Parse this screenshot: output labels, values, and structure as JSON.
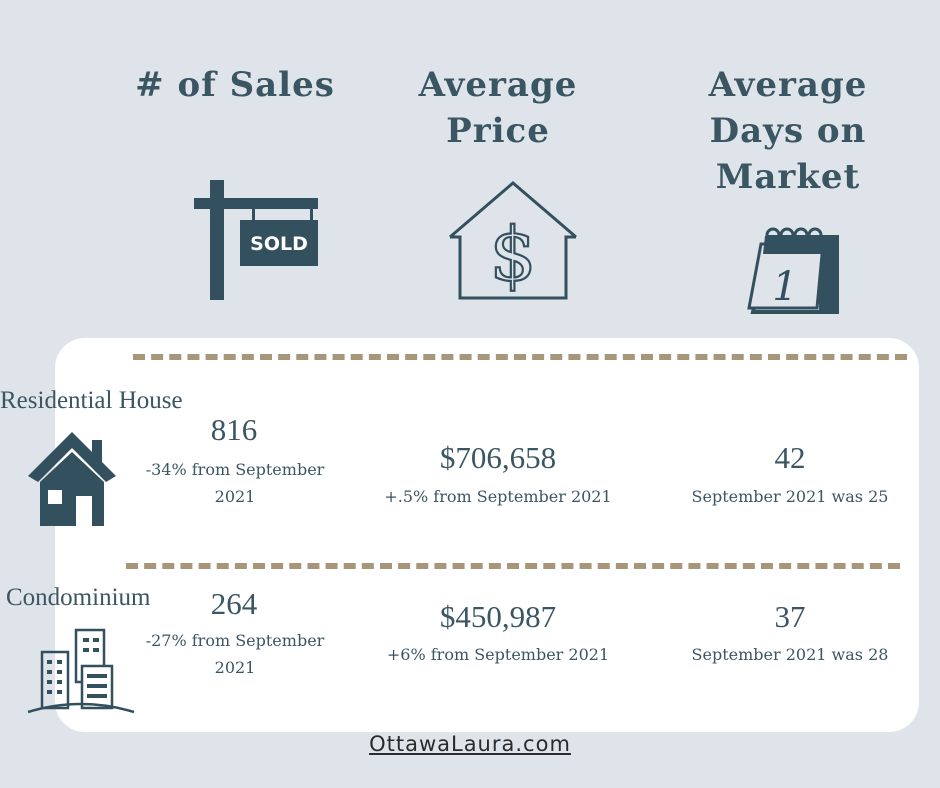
{
  "headers": {
    "sales": "# of Sales",
    "price": "Average Price",
    "days": "Average Days on Market"
  },
  "icons": {
    "sold_sign_text": "SOLD",
    "calendar_day": "1"
  },
  "rows": [
    {
      "label": "Residential House",
      "sales": "816",
      "sales_note": "-34% from September 2021",
      "price": "$706,658",
      "price_note": "+.5% from September 2021",
      "days": "42",
      "days_note": "September 2021 was 25"
    },
    {
      "label": "Condominium",
      "sales": "264",
      "sales_note": "-27% from September 2021",
      "price": "$450,987",
      "price_note": "+6% from September 2021",
      "days": "37",
      "days_note": "September 2021 was 28"
    }
  ],
  "footer": "OttawaLaura.com",
  "colors": {
    "background": "#dfe4ea",
    "card": "#ffffff",
    "text": "#3b5663",
    "divider": "#a8967a"
  }
}
